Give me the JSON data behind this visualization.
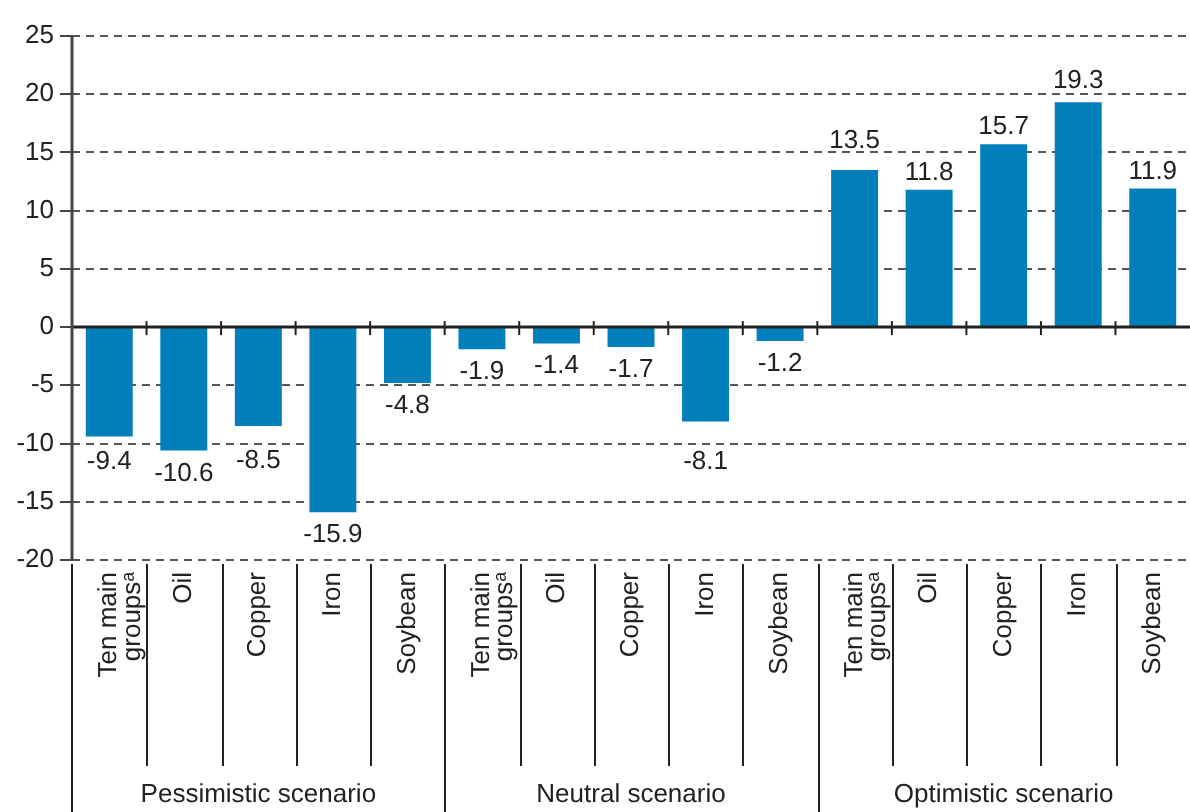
{
  "chart_data": {
    "type": "bar",
    "categories": [
      "Ten main groupsᵃ",
      "Oil",
      "Copper",
      "Iron",
      "Soybean",
      "Ten main groupsᵃ",
      "Oil",
      "Copper",
      "Iron",
      "Soybean",
      "Ten main groupsᵃ",
      "Oil",
      "Copper",
      "Iron",
      "Soybean"
    ],
    "values": [
      -9.4,
      -10.6,
      -8.5,
      -15.9,
      -4.8,
      -1.9,
      -1.4,
      -1.7,
      -8.1,
      -1.2,
      13.5,
      11.8,
      15.7,
      19.3,
      11.9
    ],
    "color": "#007fbb",
    "ylim": [
      -20,
      25
    ],
    "yticks": [
      -20,
      -15,
      -10,
      -5,
      0,
      5,
      10,
      15,
      20,
      25
    ],
    "grid": "y",
    "legend": false,
    "data_labels": true,
    "annotations": [
      "Pessimistic scenario",
      "Neutral scenario",
      "Optimistic scenario"
    ]
  }
}
